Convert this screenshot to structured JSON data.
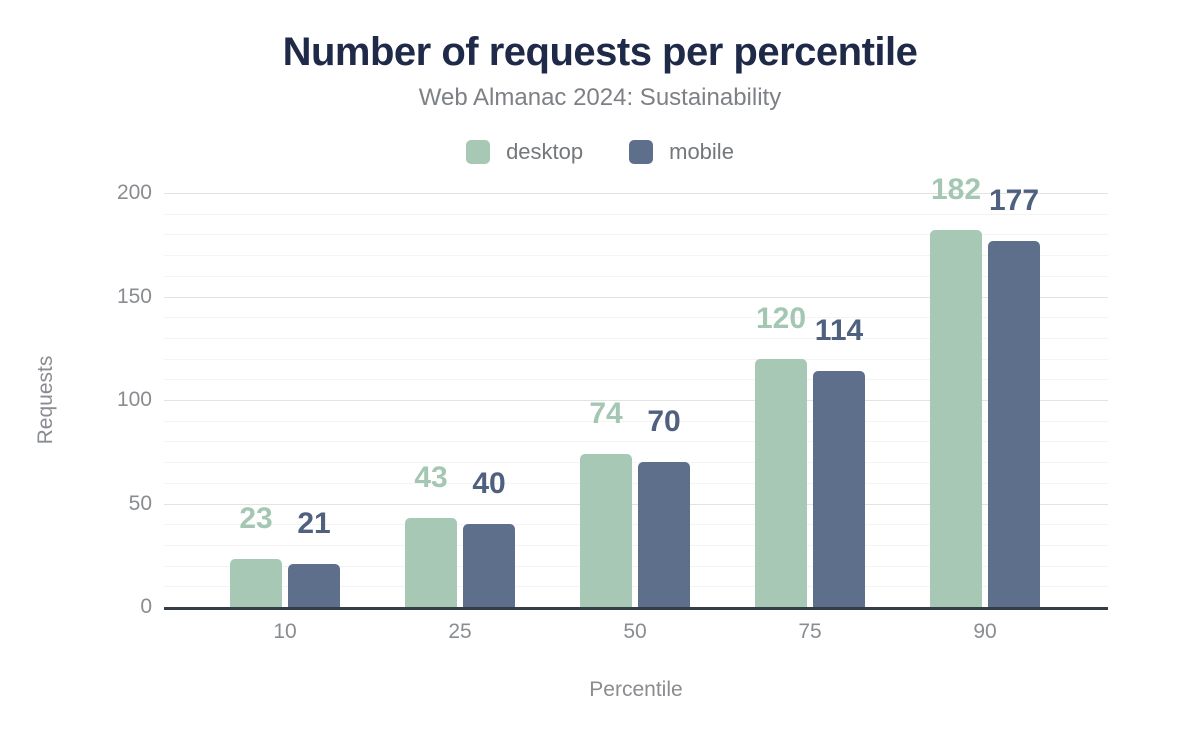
{
  "chart_data": {
    "type": "bar",
    "title": "Number of requests per percentile",
    "subtitle": "Web Almanac 2024: Sustainability",
    "xlabel": "Percentile",
    "ylabel": "Requests",
    "categories": [
      "10",
      "25",
      "50",
      "75",
      "90"
    ],
    "series": [
      {
        "name": "desktop",
        "values": [
          23,
          43,
          74,
          120,
          182
        ],
        "color": "#a6c8b5",
        "label_color": "#a4c7b4"
      },
      {
        "name": "mobile",
        "values": [
          21,
          40,
          70,
          114,
          177
        ],
        "color": "#5e6f8c",
        "label_color": "#4f617f"
      }
    ],
    "ylim": [
      0,
      200
    ],
    "yticks": [
      0,
      50,
      100,
      150,
      200
    ],
    "grid": {
      "orientation": "horizontal",
      "major_every": 50,
      "minor_every": 10
    },
    "legend_position": "top",
    "palette": {
      "title_color": "#1f2a49",
      "subtitle_color": "#7d8084",
      "tick_color": "#898c90",
      "axis_color": "#343c46",
      "grid_major_color": "#e3e3e3",
      "grid_minor_color": "#f4f4f4",
      "background": "#ffffff"
    }
  }
}
